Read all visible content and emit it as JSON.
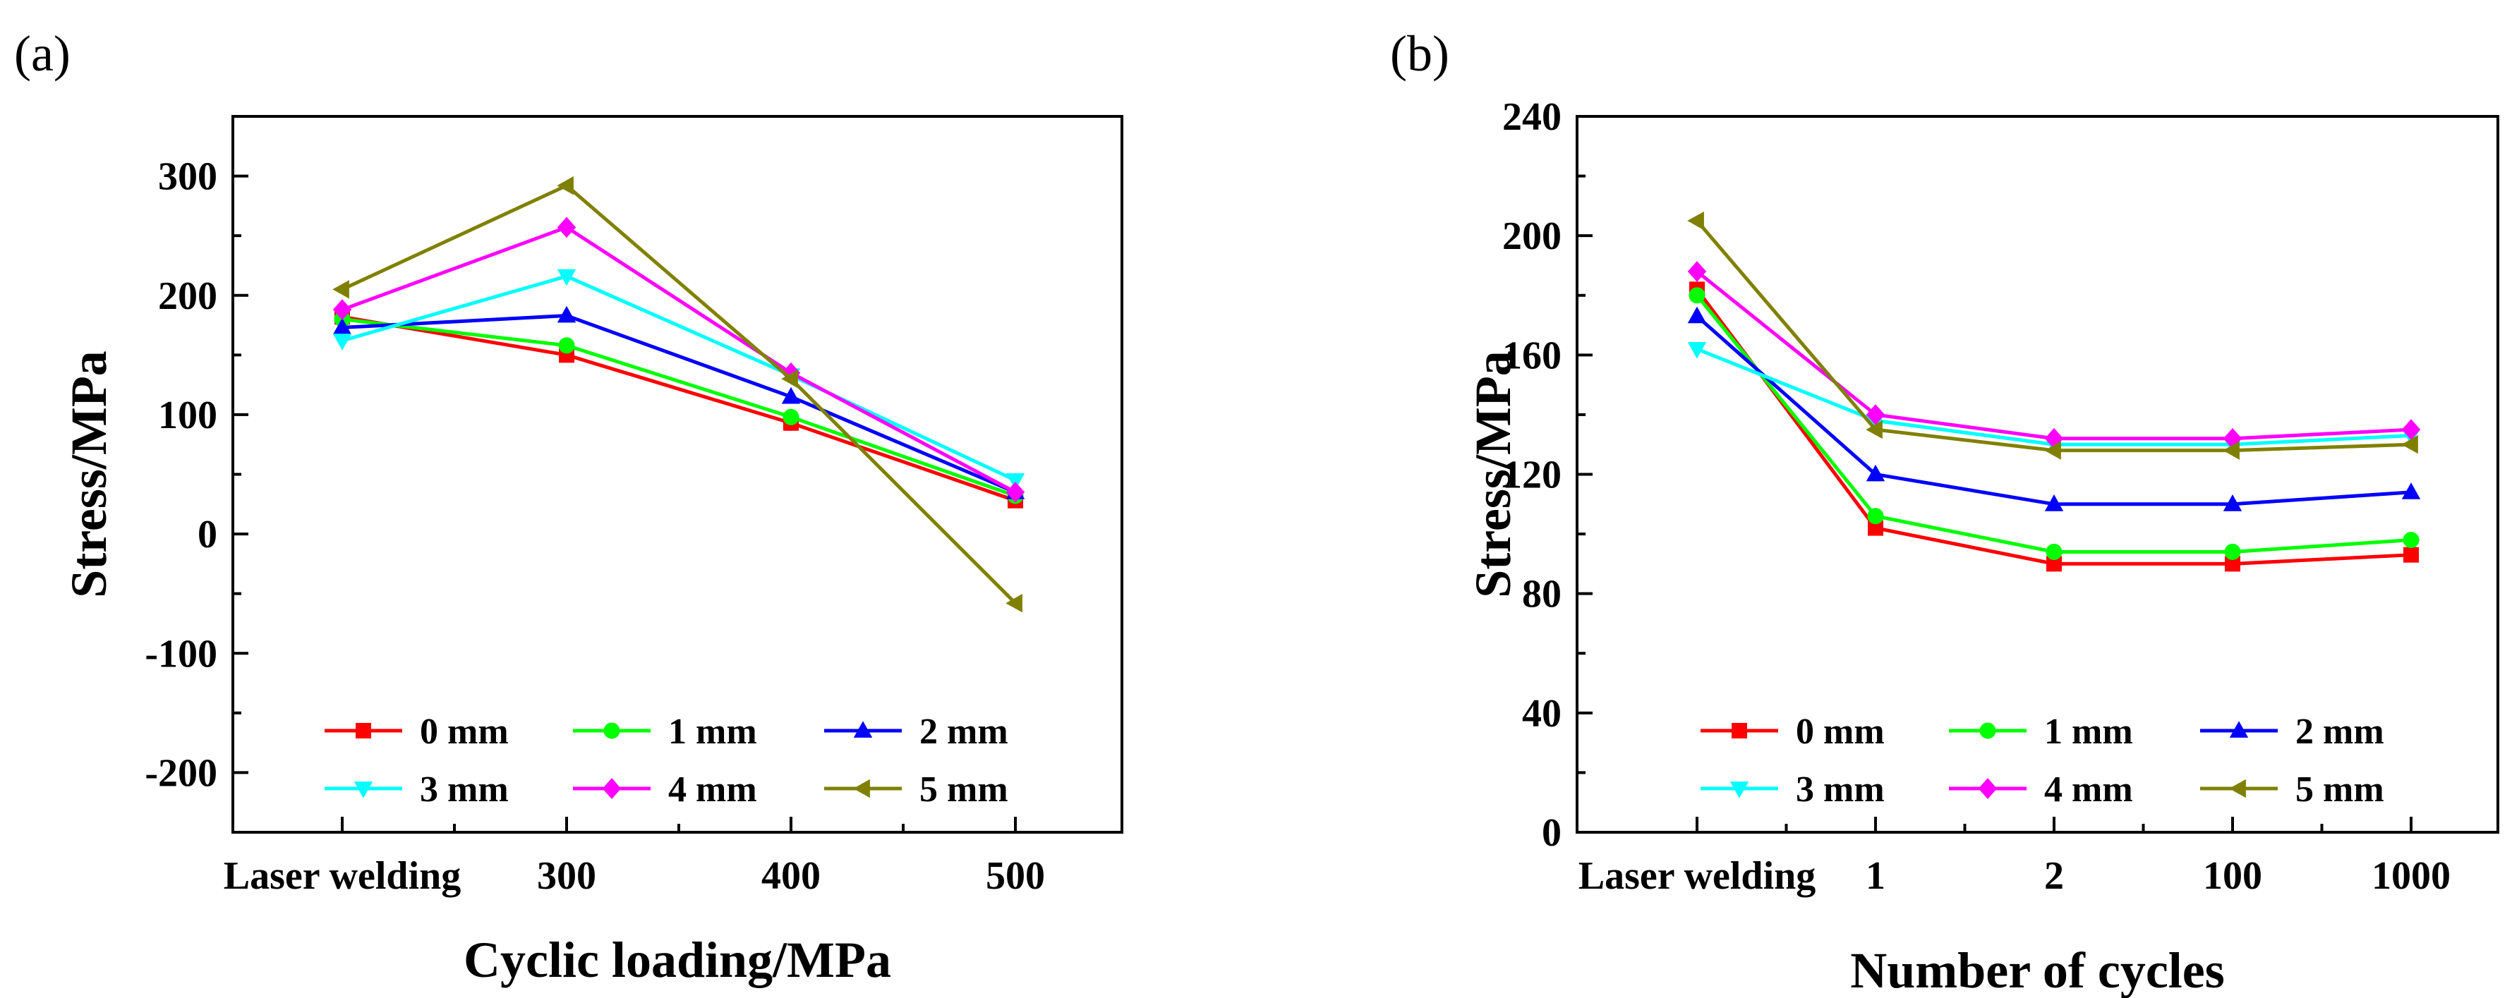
{
  "chart_data": [
    {
      "type": "line",
      "panel_label": "(a)",
      "xlabel": "Cyclic loading/MPa",
      "ylabel": "Stress/MPa",
      "categories": [
        "Laser welding",
        "300",
        "400",
        "500"
      ],
      "ylim": [
        -250,
        350
      ],
      "yticks": [
        -200,
        -100,
        0,
        100,
        200,
        300
      ],
      "legend_position": "bottom-center",
      "series": [
        {
          "name": "0 mm",
          "color": "#ff0000",
          "marker": "square",
          "values": [
            182,
            150,
            93,
            28
          ]
        },
        {
          "name": "1 mm",
          "color": "#00ff00",
          "marker": "circle",
          "values": [
            180,
            158,
            98,
            32
          ]
        },
        {
          "name": "2 mm",
          "color": "#0000ff",
          "marker": "triangle-up",
          "values": [
            173,
            183,
            115,
            35
          ]
        },
        {
          "name": "3 mm",
          "color": "#00ffff",
          "marker": "triangle-down",
          "values": [
            162,
            216,
            133,
            45
          ]
        },
        {
          "name": "4 mm",
          "color": "#ff00ff",
          "marker": "diamond",
          "values": [
            188,
            257,
            135,
            35
          ]
        },
        {
          "name": "5 mm",
          "color": "#808000",
          "marker": "triangle-left",
          "values": [
            205,
            292,
            130,
            -58
          ]
        }
      ]
    },
    {
      "type": "line",
      "panel_label": "(b)",
      "xlabel": "Number of cycles",
      "ylabel": "Stress/MPa",
      "categories": [
        "Laser welding",
        "1",
        "2",
        "100",
        "1000"
      ],
      "ylim": [
        0,
        240
      ],
      "yticks": [
        0,
        40,
        80,
        120,
        160,
        200,
        240
      ],
      "legend_position": "bottom-center",
      "series": [
        {
          "name": "0 mm",
          "color": "#ff0000",
          "marker": "square",
          "values": [
            182,
            102,
            90,
            90,
            93
          ]
        },
        {
          "name": "1 mm",
          "color": "#00ff00",
          "marker": "circle",
          "values": [
            180,
            106,
            94,
            94,
            98
          ]
        },
        {
          "name": "2 mm",
          "color": "#0000ff",
          "marker": "triangle-up",
          "values": [
            173,
            120,
            110,
            110,
            114
          ]
        },
        {
          "name": "3 mm",
          "color": "#00ffff",
          "marker": "triangle-down",
          "values": [
            162,
            138,
            130,
            130,
            133
          ]
        },
        {
          "name": "4 mm",
          "color": "#ff00ff",
          "marker": "diamond",
          "values": [
            188,
            140,
            132,
            132,
            135
          ]
        },
        {
          "name": "5 mm",
          "color": "#808000",
          "marker": "triangle-left",
          "values": [
            205,
            135,
            128,
            128,
            130
          ]
        }
      ]
    }
  ]
}
